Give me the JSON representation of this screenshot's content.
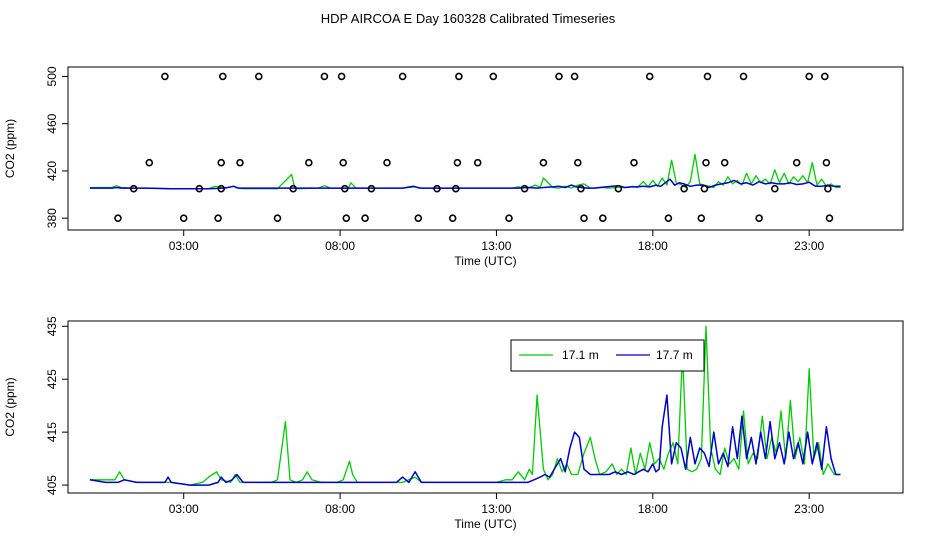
{
  "title": "HDP AIRCOA E  Day 160328  Calibrated Timeseries",
  "colors": {
    "green": "#00cc00",
    "blue": "#0000cc",
    "axis": "#000000",
    "background": "#ffffff"
  },
  "chart_data": [
    {
      "type": "scatter+line",
      "xlabel": "Time (UTC)",
      "ylabel": "CO2 (ppm)",
      "xlim": [
        -0.7,
        26.0
      ],
      "ylim": [
        370.0,
        508.0
      ],
      "x_ticks": [
        3,
        8,
        13,
        18,
        23
      ],
      "x_tick_labels": [
        "03:00",
        "08:00",
        "13:00",
        "18:00",
        "23:00"
      ],
      "y_ticks": [
        380,
        420,
        460,
        500
      ],
      "y_tick_labels": [
        "380",
        "420",
        "460",
        "500"
      ],
      "legend": "none",
      "calibration_points": [
        {
          "x": 0.9,
          "y": 380
        },
        {
          "x": 1.4,
          "y": 405
        },
        {
          "x": 1.9,
          "y": 427
        },
        {
          "x": 2.4,
          "y": 500
        },
        {
          "x": 3.0,
          "y": 380
        },
        {
          "x": 3.5,
          "y": 405
        },
        {
          "x": 4.1,
          "y": 380
        },
        {
          "x": 4.2,
          "y": 405
        },
        {
          "x": 4.2,
          "y": 427
        },
        {
          "x": 4.25,
          "y": 500
        },
        {
          "x": 4.8,
          "y": 427
        },
        {
          "x": 5.4,
          "y": 500
        },
        {
          "x": 6.0,
          "y": 380
        },
        {
          "x": 6.5,
          "y": 405
        },
        {
          "x": 7.0,
          "y": 427
        },
        {
          "x": 7.5,
          "y": 500
        },
        {
          "x": 8.05,
          "y": 500
        },
        {
          "x": 8.1,
          "y": 427
        },
        {
          "x": 8.15,
          "y": 405
        },
        {
          "x": 8.2,
          "y": 380
        },
        {
          "x": 8.8,
          "y": 380
        },
        {
          "x": 9.0,
          "y": 405
        },
        {
          "x": 9.5,
          "y": 427
        },
        {
          "x": 10.0,
          "y": 500
        },
        {
          "x": 10.5,
          "y": 380
        },
        {
          "x": 11.1,
          "y": 405
        },
        {
          "x": 11.6,
          "y": 380
        },
        {
          "x": 11.7,
          "y": 405
        },
        {
          "x": 11.75,
          "y": 427
        },
        {
          "x": 11.8,
          "y": 500
        },
        {
          "x": 12.4,
          "y": 427
        },
        {
          "x": 12.9,
          "y": 500
        },
        {
          "x": 13.4,
          "y": 380
        },
        {
          "x": 13.9,
          "y": 405
        },
        {
          "x": 14.5,
          "y": 427
        },
        {
          "x": 15.0,
          "y": 500
        },
        {
          "x": 15.5,
          "y": 500
        },
        {
          "x": 15.6,
          "y": 427
        },
        {
          "x": 15.7,
          "y": 405
        },
        {
          "x": 15.8,
          "y": 380
        },
        {
          "x": 16.4,
          "y": 380
        },
        {
          "x": 16.9,
          "y": 405
        },
        {
          "x": 17.4,
          "y": 427
        },
        {
          "x": 17.9,
          "y": 500
        },
        {
          "x": 18.5,
          "y": 380
        },
        {
          "x": 19.0,
          "y": 405
        },
        {
          "x": 19.55,
          "y": 380
        },
        {
          "x": 19.65,
          "y": 405
        },
        {
          "x": 19.7,
          "y": 427
        },
        {
          "x": 19.75,
          "y": 500
        },
        {
          "x": 20.3,
          "y": 427
        },
        {
          "x": 20.9,
          "y": 500
        },
        {
          "x": 21.4,
          "y": 380
        },
        {
          "x": 21.9,
          "y": 405
        },
        {
          "x": 22.6,
          "y": 427
        },
        {
          "x": 23.0,
          "y": 500
        },
        {
          "x": 23.5,
          "y": 500
        },
        {
          "x": 23.55,
          "y": 427
        },
        {
          "x": 23.6,
          "y": 405
        },
        {
          "x": 23.65,
          "y": 380
        }
      ],
      "series": [
        {
          "color": "#00cc00",
          "x": [
            0.0,
            0.7,
            0.85,
            1.0,
            1.4,
            1.8,
            2.6,
            3.2,
            3.8,
            4.0,
            4.3,
            4.6,
            4.7,
            4.9,
            5.2,
            5.6,
            6.0,
            6.45,
            6.55,
            6.7,
            7.3,
            7.5,
            7.7,
            8.0,
            8.25,
            8.35,
            8.5,
            9.0,
            10.0,
            10.4,
            10.6,
            11.0,
            12.0,
            13.0,
            13.5,
            13.7,
            14.0,
            14.25,
            14.4,
            14.5,
            14.8,
            15.0,
            15.2,
            15.4,
            15.6,
            15.8,
            16.0,
            16.2,
            16.4,
            16.6,
            16.8,
            17.0,
            17.2,
            17.35,
            17.5,
            17.7,
            17.85,
            18.0,
            18.15,
            18.3,
            18.45,
            18.6,
            18.75,
            18.9,
            19.05,
            19.2,
            19.35,
            19.5,
            19.65,
            19.8,
            19.95,
            20.1,
            20.25,
            20.4,
            20.55,
            20.7,
            20.85,
            21.0,
            21.15,
            21.3,
            21.45,
            21.6,
            21.75,
            21.9,
            22.05,
            22.2,
            22.35,
            22.5,
            22.65,
            22.8,
            22.95,
            23.1,
            23.25,
            23.4,
            23.55,
            23.7,
            23.85,
            24.0
          ],
          "y": [
            406,
            406,
            407.5,
            406,
            405.5,
            405.5,
            405,
            405,
            405,
            407,
            405.5,
            407,
            405.5,
            405,
            405,
            405,
            405,
            417,
            405.5,
            405,
            405.5,
            407.5,
            405.5,
            405.5,
            405,
            410,
            405.5,
            405.5,
            405.5,
            406.5,
            405.5,
            405.5,
            405.5,
            405.5,
            405.5,
            406.5,
            405.5,
            408,
            406,
            414,
            406,
            405.5,
            407,
            405.5,
            408,
            409,
            405.5,
            405.5,
            406,
            405.5,
            406,
            406,
            406,
            407,
            406,
            411,
            406.5,
            412,
            407,
            414,
            408,
            429,
            410,
            408.5,
            406,
            411,
            434,
            409,
            408,
            407,
            406,
            411,
            408,
            415,
            409,
            412,
            408,
            418,
            409,
            416,
            410,
            413,
            409,
            421,
            410,
            418,
            409,
            415,
            411,
            416,
            410,
            427,
            408,
            413,
            407,
            409,
            406,
            406
          ]
        },
        {
          "color": "#0000cc",
          "x": [
            0.0,
            0.7,
            0.85,
            1.0,
            1.4,
            1.8,
            2.6,
            3.2,
            3.8,
            4.3,
            4.6,
            4.75,
            4.9,
            5.2,
            6.0,
            7.0,
            8.0,
            9.0,
            10.0,
            10.35,
            10.55,
            11.0,
            12.0,
            13.0,
            13.7,
            14.0,
            14.3,
            14.5,
            14.8,
            15.0,
            15.2,
            15.4,
            15.55,
            15.7,
            15.9,
            16.1,
            16.3,
            16.5,
            16.7,
            16.9,
            17.1,
            17.3,
            17.5,
            17.7,
            17.9,
            18.1,
            18.25,
            18.4,
            18.55,
            18.7,
            18.85,
            19.0,
            19.2,
            19.4,
            19.6,
            19.8,
            20.0,
            20.2,
            20.4,
            20.6,
            20.8,
            21.0,
            21.2,
            21.4,
            21.6,
            21.8,
            22.0,
            22.2,
            22.4,
            22.6,
            22.8,
            23.0,
            23.2,
            23.4,
            23.6,
            23.8,
            24.0
          ],
          "y": [
            405.5,
            405.5,
            406,
            405.5,
            405.5,
            405.5,
            405,
            405,
            405,
            405.5,
            407,
            405.5,
            405.5,
            405.5,
            405.5,
            405.5,
            405.5,
            405.5,
            405.5,
            407,
            405.5,
            405.5,
            405.5,
            405.5,
            405.5,
            406,
            405.5,
            406,
            406.5,
            407,
            406,
            408,
            406.5,
            406,
            405.5,
            405.5,
            406,
            406.5,
            407,
            407.5,
            406,
            406.5,
            406.5,
            407,
            406.5,
            408,
            407,
            410,
            413,
            408,
            410,
            409,
            407,
            408,
            408,
            406,
            408,
            409,
            410,
            412,
            409,
            410,
            408,
            411,
            409,
            410,
            409,
            409,
            410,
            408.5,
            409,
            410.5,
            407,
            407,
            408,
            407,
            407
          ]
        }
      ]
    },
    {
      "type": "line",
      "xlabel": "Time (UTC)",
      "ylabel": "CO2 (ppm)",
      "xlim": [
        -0.7,
        26.0
      ],
      "ylim": [
        403.5,
        436.0
      ],
      "x_ticks": [
        3,
        8,
        13,
        18,
        23
      ],
      "x_tick_labels": [
        "03:00",
        "08:00",
        "13:00",
        "18:00",
        "23:00"
      ],
      "y_ticks": [
        405,
        415,
        425,
        435
      ],
      "y_tick_labels": [
        "405",
        "415",
        "425",
        "435"
      ],
      "legend": "top-right",
      "series": [
        {
          "name": "17.1 m",
          "color": "#00cc00",
          "x": [
            0.0,
            0.5,
            0.8,
            0.95,
            1.1,
            1.5,
            2.0,
            2.6,
            3.2,
            3.6,
            3.8,
            4.05,
            4.2,
            4.5,
            4.65,
            4.8,
            5.0,
            5.3,
            5.5,
            5.8,
            6.0,
            6.25,
            6.4,
            6.6,
            6.8,
            6.95,
            7.1,
            7.4,
            7.6,
            7.9,
            8.1,
            8.3,
            8.4,
            8.55,
            8.9,
            9.5,
            10.0,
            10.4,
            10.6,
            11.0,
            11.5,
            12.0,
            12.5,
            13.0,
            13.3,
            13.5,
            13.7,
            13.9,
            14.05,
            14.15,
            14.3,
            14.5,
            14.65,
            14.8,
            14.95,
            15.1,
            15.25,
            15.4,
            15.6,
            15.8,
            16.0,
            16.15,
            16.3,
            16.5,
            16.7,
            16.85,
            17.0,
            17.15,
            17.3,
            17.45,
            17.6,
            17.75,
            17.9,
            18.05,
            18.2,
            18.35,
            18.5,
            18.65,
            18.8,
            18.95,
            19.1,
            19.25,
            19.4,
            19.55,
            19.7,
            19.85,
            20.0,
            20.15,
            20.3,
            20.45,
            20.6,
            20.75,
            20.9,
            21.05,
            21.2,
            21.35,
            21.5,
            21.65,
            21.8,
            21.95,
            22.1,
            22.25,
            22.4,
            22.55,
            22.7,
            22.85,
            23.0,
            23.15,
            23.3,
            23.45,
            23.6,
            23.8,
            24.0
          ],
          "y": [
            406,
            406,
            406,
            407.5,
            406,
            405.5,
            405.5,
            405.5,
            405,
            405.5,
            406.5,
            407.5,
            406,
            405.5,
            407,
            405.5,
            405.5,
            405.5,
            405.5,
            405.5,
            406,
            417,
            406,
            405.5,
            406,
            407.5,
            406,
            405.5,
            405.5,
            405.5,
            406,
            409.5,
            407,
            405.5,
            405.5,
            405.5,
            405.5,
            406.5,
            405.5,
            405.5,
            405.5,
            405.5,
            405.5,
            405.5,
            406,
            406,
            407.5,
            406,
            408,
            407,
            422,
            408,
            406,
            407,
            410,
            407.5,
            409,
            407,
            407,
            411,
            414,
            410,
            407,
            407.5,
            409,
            407,
            408,
            407,
            412,
            407,
            411,
            408,
            413,
            409,
            410,
            408,
            411,
            413,
            409,
            430,
            408,
            407.5,
            408,
            410,
            435,
            412,
            408,
            407,
            412,
            409,
            410,
            408,
            419,
            409,
            411,
            410,
            418,
            410,
            414,
            411,
            419,
            410,
            421,
            410,
            414,
            409,
            427,
            410,
            413,
            407,
            409,
            407,
            407
          ]
        },
        {
          "name": "17.7 m",
          "color": "#0000cc",
          "x": [
            0.0,
            0.5,
            0.9,
            1.1,
            1.5,
            2.0,
            2.4,
            2.5,
            2.6,
            3.2,
            3.8,
            4.1,
            4.2,
            4.35,
            4.55,
            4.7,
            4.9,
            5.3,
            6.0,
            7.0,
            8.0,
            9.0,
            9.8,
            10.0,
            10.2,
            10.4,
            10.6,
            11.0,
            12.0,
            13.0,
            13.5,
            13.8,
            14.0,
            14.2,
            14.4,
            14.55,
            14.7,
            14.9,
            15.05,
            15.2,
            15.35,
            15.5,
            15.65,
            15.8,
            16.0,
            16.2,
            16.4,
            16.6,
            16.8,
            17.0,
            17.2,
            17.4,
            17.55,
            17.7,
            17.85,
            18.0,
            18.1,
            18.2,
            18.3,
            18.45,
            18.6,
            18.75,
            18.9,
            19.05,
            19.2,
            19.35,
            19.5,
            19.65,
            19.8,
            19.95,
            20.1,
            20.25,
            20.4,
            20.55,
            20.7,
            20.85,
            21.0,
            21.15,
            21.3,
            21.45,
            21.6,
            21.75,
            21.9,
            22.05,
            22.2,
            22.35,
            22.5,
            22.65,
            22.8,
            22.95,
            23.1,
            23.25,
            23.4,
            23.55,
            23.7,
            23.85,
            24.0
          ],
          "y": [
            406,
            405.5,
            405.5,
            406,
            405.5,
            405.5,
            405.5,
            406.5,
            405.5,
            405,
            405,
            405.5,
            406.5,
            405.5,
            406,
            407,
            405.5,
            405.5,
            405.5,
            405.5,
            405.5,
            405.5,
            405.5,
            406.5,
            405.5,
            407.5,
            405.5,
            405.5,
            405.5,
            405.5,
            405.5,
            405.5,
            405.5,
            406,
            406.5,
            407,
            406.5,
            408.5,
            410,
            407.5,
            412,
            415,
            414,
            408,
            407,
            407,
            407,
            407,
            407.5,
            407,
            407.5,
            407,
            407.5,
            408,
            407.5,
            409,
            407.5,
            408,
            416,
            422,
            409,
            413,
            412,
            408,
            414,
            409,
            412,
            411,
            408.5,
            415,
            409,
            411,
            408.5,
            416,
            410,
            418,
            410,
            414,
            409,
            415,
            410,
            417,
            410,
            413,
            409,
            415,
            410,
            413,
            409,
            415,
            409,
            413,
            408,
            416,
            410,
            407,
            407
          ]
        }
      ]
    }
  ]
}
